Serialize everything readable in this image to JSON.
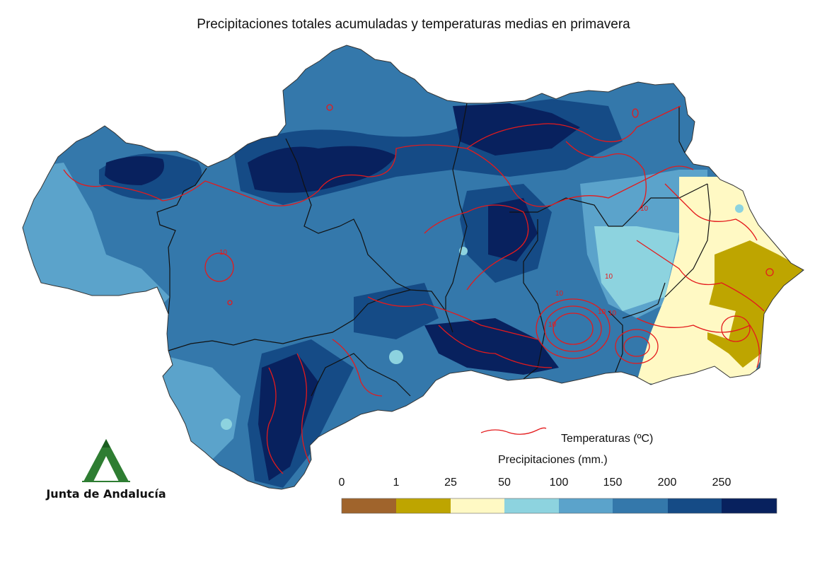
{
  "title": "Precipitaciones totales acumuladas y temperaturas medias en primavera",
  "legend": {
    "temperature_label": "Temperaturas (ºC)",
    "precip_label": "Precipitaciones (mm.)",
    "breaks": [
      "0",
      "1",
      "25",
      "50",
      "100",
      "150",
      "200",
      "250"
    ],
    "colors": [
      "#a0642c",
      "#bea500",
      "#fff9c4",
      "#8dd3df",
      "#5ba3cb",
      "#3478ab",
      "#154b86",
      "#08215e"
    ],
    "temperature_line_color": "#e41a1c"
  },
  "contour_labels": [
    "10",
    "10",
    "10",
    "10",
    "10",
    "10",
    "10"
  ],
  "logo": {
    "text": "Junta de Andalucía",
    "icon": "junta-andalucia-logo-icon",
    "color": "#2e7d32"
  }
}
